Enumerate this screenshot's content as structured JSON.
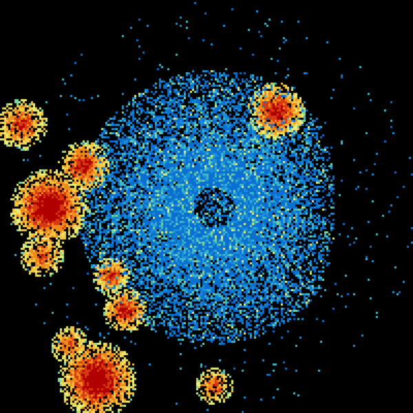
{
  "image": {
    "kind": "weather-radar-reflectivity",
    "background": "#000000",
    "palette": [
      "#0a6fd0",
      "#1b8fd8",
      "#3fb8c8",
      "#7fd6a0",
      "#e6f07a",
      "#f5c842",
      "#f08a1c",
      "#d83a10",
      "#b00000"
    ]
  }
}
